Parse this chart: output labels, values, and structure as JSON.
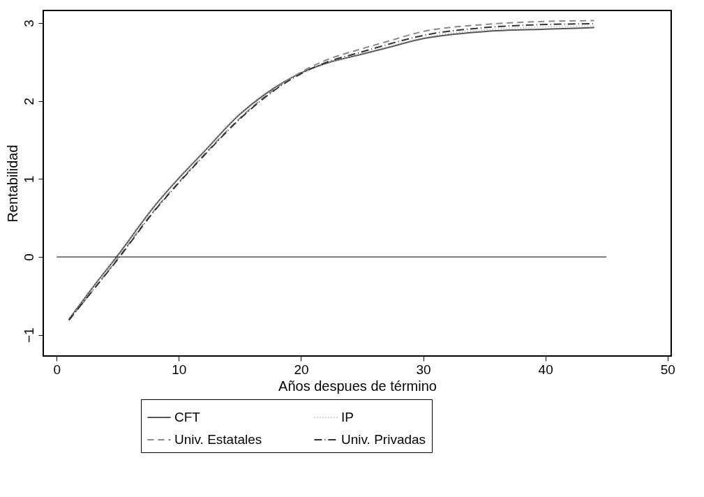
{
  "chart_data": {
    "type": "line",
    "xlabel": "Años despues de término",
    "ylabel": "Rentabilidad",
    "xlim": [
      -1.1,
      50.3
    ],
    "xticks": [
      0,
      10,
      20,
      30,
      40,
      50
    ],
    "ylim": [
      -1.27,
      3.16
    ],
    "yticks": [
      -1,
      0,
      1,
      2,
      3
    ],
    "grid": false,
    "legend": "bottom",
    "marker": "none",
    "x": [
      1,
      3,
      5,
      8,
      10,
      12,
      15,
      17,
      20,
      22,
      25,
      27,
      30,
      35,
      40,
      44
    ],
    "series": [
      {
        "name": "CFT",
        "color": "#555555",
        "line_style": "solid",
        "values": [
          -0.8,
          -0.38,
          0.02,
          0.65,
          1.01,
          1.34,
          1.83,
          2.08,
          2.36,
          2.48,
          2.6,
          2.68,
          2.8,
          2.89,
          2.92,
          2.94
        ]
      },
      {
        "name": "IP",
        "color": "#b0b0b0",
        "line_style": "dotted",
        "values": [
          -0.8,
          -0.38,
          0.03,
          0.66,
          1.02,
          1.35,
          1.84,
          2.09,
          2.36,
          2.48,
          2.61,
          2.69,
          2.81,
          2.91,
          2.95,
          2.96
        ]
      },
      {
        "name": "Univ. Estatales",
        "color": "#888888",
        "line_style": "dashed",
        "values": [
          -0.81,
          -0.42,
          -0.02,
          0.6,
          0.96,
          1.3,
          1.78,
          2.05,
          2.37,
          2.52,
          2.67,
          2.76,
          2.89,
          2.98,
          3.02,
          3.03
        ]
      },
      {
        "name": "Univ. Privadas",
        "color": "#333333",
        "line_style": "dashdot",
        "values": [
          -0.81,
          -0.42,
          -0.03,
          0.59,
          0.95,
          1.29,
          1.77,
          2.04,
          2.35,
          2.49,
          2.63,
          2.72,
          2.84,
          2.94,
          2.98,
          2.99
        ]
      },
      {
        "color": "#000000",
        "line_style": "solid",
        "x": [
          0,
          45
        ],
        "values": [
          0,
          0
        ]
      }
    ]
  }
}
